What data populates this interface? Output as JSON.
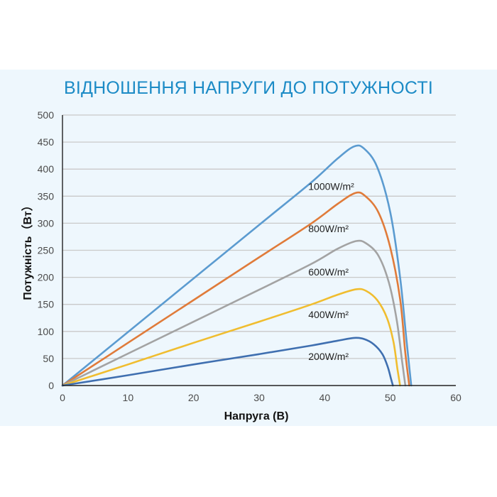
{
  "chart_data": {
    "type": "line",
    "title": "ВІДНОШЕННЯ НАПРУГИ ДО ПОТУЖНОСТІ",
    "xlabel": "Напруга (В)",
    "ylabel": "Потужність（Вт）",
    "xlim": [
      0,
      60
    ],
    "ylim": [
      0,
      500
    ],
    "xticks": [
      "0",
      "10",
      "20",
      "30",
      "40",
      "50",
      "60"
    ],
    "yticks": [
      "0",
      "50",
      "100",
      "150",
      "200",
      "250",
      "300",
      "350",
      "400",
      "450",
      "500"
    ],
    "grid": "horizontal",
    "series": [
      {
        "name": "1000W/m²",
        "color": "#5b9bd0",
        "x": [
          0,
          10,
          20,
          30,
          38,
          42,
          44.5,
          46,
          48,
          50,
          51.5,
          52.5,
          53.2
        ],
        "y": [
          0,
          99,
          198,
          297,
          376,
          420,
          442,
          438,
          404,
          320,
          200,
          80,
          0
        ]
      },
      {
        "name": "800W/m²",
        "color": "#e07b3a",
        "x": [
          0,
          10,
          20,
          30,
          38,
          42,
          44.7,
          46.2,
          48.2,
          50,
          51.5,
          52.3,
          52.9
        ],
        "y": [
          0,
          79,
          158,
          237,
          300,
          336,
          356,
          350,
          320,
          255,
          160,
          60,
          0
        ]
      },
      {
        "name": "600W/m²",
        "color": "#a3a3a3",
        "x": [
          0,
          10,
          20,
          30,
          38,
          42,
          44.8,
          46.3,
          48.2,
          49.8,
          51,
          51.8,
          52.3
        ],
        "y": [
          0,
          59,
          118,
          177,
          225,
          253,
          267,
          263,
          240,
          190,
          120,
          45,
          0
        ]
      },
      {
        "name": "400W/m²",
        "color": "#f0bd2f",
        "x": [
          0,
          10,
          20,
          30,
          38,
          42,
          44.8,
          46.3,
          48,
          49.5,
          50.5,
          51.1,
          51.5
        ],
        "y": [
          0,
          39,
          79,
          118,
          150,
          168,
          178,
          175,
          158,
          125,
          80,
          30,
          0
        ]
      },
      {
        "name": "200W/m²",
        "color": "#3f6fb0",
        "x": [
          0,
          10,
          20,
          30,
          38,
          42,
          44.5,
          46,
          47.5,
          48.8,
          49.6,
          50.1,
          50.4
        ],
        "y": [
          0,
          19,
          39,
          58,
          74,
          83,
          88,
          86,
          76,
          58,
          35,
          13,
          0
        ]
      }
    ],
    "labels": [
      {
        "text": "1000W/m²",
        "x": 37.5,
        "y": 368
      },
      {
        "text": "800W/m²",
        "x": 37.5,
        "y": 290
      },
      {
        "text": "600W/m²",
        "x": 37.5,
        "y": 210
      },
      {
        "text": "400W/m²",
        "x": 37.5,
        "y": 131
      },
      {
        "text": "200W/m²",
        "x": 37.5,
        "y": 54
      }
    ]
  }
}
